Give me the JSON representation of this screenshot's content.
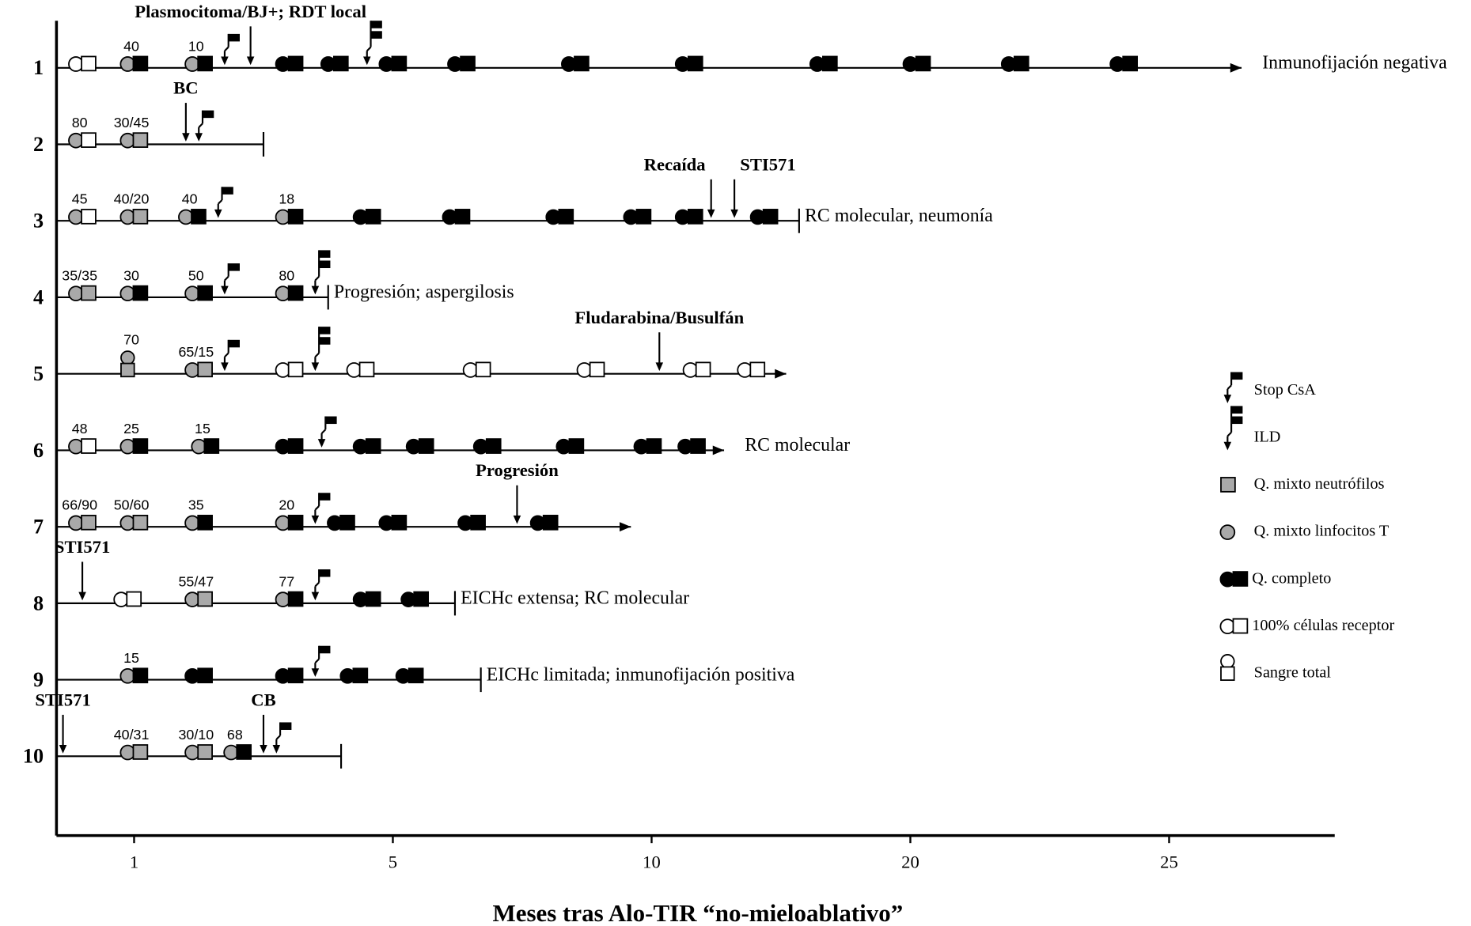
{
  "chart_data": {
    "type": "timeline",
    "x_label": "Meses tras Alo-TIR “no-mieloablativo”",
    "xticks": [
      1,
      5,
      10,
      20,
      25
    ],
    "xlim": [
      -0.2,
      28.2
    ],
    "xscale": "tick-equidistant",
    "rows": [
      {
        "name": "1",
        "events": [
          {
            "kind": "marker",
            "month": 0.1,
            "circle": "white",
            "square": "white"
          },
          {
            "kind": "marker",
            "month": 0.9,
            "circle": "darkgray",
            "square": "black",
            "label": "40"
          },
          {
            "kind": "marker",
            "month": 1.9,
            "circle": "darkgray",
            "square": "black",
            "label": "10"
          },
          {
            "kind": "stop_csa",
            "month": 2.4
          },
          {
            "kind": "arrow",
            "month": 2.8,
            "label": "Plasmocitoma/BJ+; RDT local"
          },
          {
            "kind": "marker",
            "month": 3.3,
            "circle": "black",
            "square": "black"
          },
          {
            "kind": "marker",
            "month": 4.0,
            "circle": "black",
            "square": "black"
          },
          {
            "kind": "ild",
            "month": 4.6
          },
          {
            "kind": "marker",
            "month": 4.9,
            "circle": "black",
            "square": "black"
          },
          {
            "kind": "marker",
            "month": 6.2,
            "circle": "black",
            "square": "black"
          },
          {
            "kind": "marker",
            "month": 8.4,
            "circle": "black",
            "square": "black"
          },
          {
            "kind": "marker",
            "month": 11.2,
            "circle": "black",
            "square": "black"
          },
          {
            "kind": "marker",
            "month": 16.4,
            "circle": "black",
            "square": "black"
          },
          {
            "kind": "marker",
            "month": 20.0,
            "circle": "black",
            "square": "black"
          },
          {
            "kind": "marker",
            "month": 21.9,
            "circle": "black",
            "square": "black"
          },
          {
            "kind": "marker",
            "month": 24.0,
            "circle": "black",
            "square": "black"
          }
        ],
        "end": {
          "month": 26.4,
          "kind": "arrow"
        },
        "end_text": "Inmunofijación negativa"
      },
      {
        "name": "2",
        "events": [
          {
            "kind": "marker",
            "month": 0.1,
            "circle": "darkgray",
            "square": "white",
            "label": "80"
          },
          {
            "kind": "marker",
            "month": 0.9,
            "circle": "darkgray",
            "square": "darkgray",
            "label": "30/45"
          },
          {
            "kind": "arrow",
            "month": 1.8,
            "label": "BC"
          },
          {
            "kind": "stop_csa",
            "month": 2.0
          }
        ],
        "end": {
          "month": 3.0,
          "kind": "bar"
        }
      },
      {
        "name": "3",
        "events": [
          {
            "kind": "marker",
            "month": 0.1,
            "circle": "darkgray",
            "square": "white",
            "label": "45"
          },
          {
            "kind": "marker",
            "month": 0.9,
            "circle": "darkgray",
            "square": "darkgray",
            "label": "40/20"
          },
          {
            "kind": "marker",
            "month": 1.8,
            "circle": "darkgray",
            "square": "black",
            "label": "40"
          },
          {
            "kind": "stop_csa",
            "month": 2.3
          },
          {
            "kind": "marker",
            "month": 3.3,
            "circle": "darkgray",
            "square": "black",
            "label": "18"
          },
          {
            "kind": "marker",
            "month": 4.5,
            "circle": "black",
            "square": "black"
          },
          {
            "kind": "marker",
            "month": 6.1,
            "circle": "black",
            "square": "black"
          },
          {
            "kind": "marker",
            "month": 8.1,
            "circle": "black",
            "square": "black"
          },
          {
            "kind": "marker",
            "month": 9.6,
            "circle": "black",
            "square": "black"
          },
          {
            "kind": "marker",
            "month": 11.2,
            "circle": "black",
            "square": "black"
          },
          {
            "kind": "arrow",
            "month": 12.3,
            "label": "Recaída"
          },
          {
            "kind": "arrow",
            "month": 13.2,
            "label": "STI571"
          },
          {
            "kind": "marker",
            "month": 14.1,
            "circle": "black",
            "square": "black"
          }
        ],
        "end": {
          "month": 15.7,
          "kind": "bar"
        },
        "end_text": "RC molecular, neumonía"
      },
      {
        "name": "4",
        "events": [
          {
            "kind": "marker",
            "month": 0.1,
            "circle": "darkgray",
            "square": "darkgray",
            "label": "35/35"
          },
          {
            "kind": "marker",
            "month": 0.9,
            "circle": "darkgray",
            "square": "black",
            "label": "30"
          },
          {
            "kind": "marker",
            "month": 1.9,
            "circle": "darkgray",
            "square": "black",
            "label": "50"
          },
          {
            "kind": "stop_csa",
            "month": 2.4
          },
          {
            "kind": "marker",
            "month": 3.3,
            "circle": "darkgray",
            "square": "black",
            "label": "80"
          },
          {
            "kind": "ild",
            "month": 3.8
          }
        ],
        "end": {
          "month": 4.0,
          "kind": "bar"
        },
        "end_text": "Progresión; aspergilosis"
      },
      {
        "name": "5",
        "events": [
          {
            "kind": "marker",
            "month": 0.9,
            "circle": "darkgray",
            "square": "darkgray",
            "stacked": true,
            "label": "70"
          },
          {
            "kind": "marker",
            "month": 1.9,
            "circle": "darkgray",
            "square": "darkgray",
            "label": "65/15"
          },
          {
            "kind": "stop_csa",
            "month": 2.4
          },
          {
            "kind": "marker",
            "month": 3.3,
            "circle": "white",
            "square": "white"
          },
          {
            "kind": "ild",
            "month": 3.8
          },
          {
            "kind": "marker",
            "month": 4.4,
            "circle": "white",
            "square": "white"
          },
          {
            "kind": "marker",
            "month": 6.5,
            "circle": "white",
            "square": "white"
          },
          {
            "kind": "marker",
            "month": 8.7,
            "circle": "white",
            "square": "white"
          },
          {
            "kind": "arrow",
            "month": 10.3,
            "label": "Fludarabina/Busulfán"
          },
          {
            "kind": "marker",
            "month": 11.5,
            "circle": "white",
            "square": "white"
          },
          {
            "kind": "marker",
            "month": 13.6,
            "circle": "white",
            "square": "white"
          }
        ],
        "end": {
          "month": 15.2,
          "kind": "arrow"
        }
      },
      {
        "name": "6",
        "events": [
          {
            "kind": "marker",
            "month": 0.1,
            "circle": "darkgray",
            "square": "white",
            "label": "48"
          },
          {
            "kind": "marker",
            "month": 0.9,
            "circle": "darkgray",
            "square": "black",
            "label": "25"
          },
          {
            "kind": "marker",
            "month": 2.0,
            "circle": "darkgray",
            "square": "black",
            "label": "15"
          },
          {
            "kind": "marker",
            "month": 3.3,
            "circle": "black",
            "square": "black"
          },
          {
            "kind": "stop_csa",
            "month": 3.9
          },
          {
            "kind": "marker",
            "month": 4.5,
            "circle": "black",
            "square": "black"
          },
          {
            "kind": "marker",
            "month": 5.4,
            "circle": "black",
            "square": "black"
          },
          {
            "kind": "marker",
            "month": 6.7,
            "circle": "black",
            "square": "black"
          },
          {
            "kind": "marker",
            "month": 8.3,
            "circle": "black",
            "square": "black"
          },
          {
            "kind": "marker",
            "month": 9.8,
            "circle": "black",
            "square": "black"
          },
          {
            "kind": "marker",
            "month": 11.3,
            "circle": "black",
            "square": "black"
          }
        ],
        "end": {
          "month": 12.8,
          "kind": "arrow"
        },
        "end_text": "RC molecular"
      },
      {
        "name": "7",
        "events": [
          {
            "kind": "marker",
            "month": 0.1,
            "circle": "darkgray",
            "square": "darkgray",
            "label": "66/90"
          },
          {
            "kind": "marker",
            "month": 0.9,
            "circle": "darkgray",
            "square": "darkgray",
            "label": "50/60"
          },
          {
            "kind": "marker",
            "month": 1.9,
            "circle": "darkgray",
            "square": "black",
            "label": "35"
          },
          {
            "kind": "marker",
            "month": 3.3,
            "circle": "darkgray",
            "square": "black",
            "label": "20"
          },
          {
            "kind": "stop_csa",
            "month": 3.8
          },
          {
            "kind": "marker",
            "month": 4.1,
            "circle": "black",
            "square": "black"
          },
          {
            "kind": "marker",
            "month": 4.9,
            "circle": "black",
            "square": "black"
          },
          {
            "kind": "marker",
            "month": 6.4,
            "circle": "black",
            "square": "black"
          },
          {
            "kind": "arrow",
            "month": 7.4,
            "label": "Progresión"
          },
          {
            "kind": "marker",
            "month": 7.8,
            "circle": "black",
            "square": "black"
          }
        ],
        "end": {
          "month": 9.6,
          "kind": "arrow"
        }
      },
      {
        "name": "8",
        "events": [
          {
            "kind": "arrow",
            "month": 0.2,
            "label": "STI571"
          },
          {
            "kind": "marker",
            "month": 0.8,
            "circle": "white",
            "square": "white"
          },
          {
            "kind": "marker",
            "month": 1.9,
            "circle": "darkgray",
            "square": "darkgray",
            "label": "55/47"
          },
          {
            "kind": "marker",
            "month": 3.3,
            "circle": "darkgray",
            "square": "black",
            "label": "77"
          },
          {
            "kind": "stop_csa",
            "month": 3.8
          },
          {
            "kind": "marker",
            "month": 4.5,
            "circle": "black",
            "square": "black"
          },
          {
            "kind": "marker",
            "month": 5.3,
            "circle": "black",
            "square": "black"
          }
        ],
        "end": {
          "month": 6.2,
          "kind": "bar"
        },
        "end_text": "EICHc extensa; RC molecular"
      },
      {
        "name": "9",
        "events": [
          {
            "kind": "marker",
            "month": 0.9,
            "circle": "darkgray",
            "square": "black",
            "label": "15"
          },
          {
            "kind": "marker",
            "month": 1.9,
            "circle": "black",
            "square": "black"
          },
          {
            "kind": "marker",
            "month": 3.3,
            "circle": "black",
            "square": "black"
          },
          {
            "kind": "stop_csa",
            "month": 3.8
          },
          {
            "kind": "marker",
            "month": 4.3,
            "circle": "black",
            "square": "black"
          },
          {
            "kind": "marker",
            "month": 5.2,
            "circle": "black",
            "square": "black"
          }
        ],
        "end": {
          "month": 6.7,
          "kind": "bar"
        },
        "end_text": "EICHc limitada; inmunofijación positiva"
      },
      {
        "name": "10",
        "events": [
          {
            "kind": "arrow",
            "month": -0.1,
            "label": "STI571"
          },
          {
            "kind": "marker",
            "month": 0.9,
            "circle": "darkgray",
            "square": "darkgray",
            "label": "40/31"
          },
          {
            "kind": "marker",
            "month": 1.9,
            "circle": "darkgray",
            "square": "darkgray",
            "label": "30/10"
          },
          {
            "kind": "marker",
            "month": 2.5,
            "circle": "darkgray",
            "square": "black",
            "label": "68"
          },
          {
            "kind": "arrow",
            "month": 3.0,
            "label": "CB"
          },
          {
            "kind": "stop_csa",
            "month": 3.2
          }
        ],
        "end": {
          "month": 4.2,
          "kind": "bar"
        }
      }
    ],
    "legend_position": "right",
    "legend": [
      {
        "label": "Stop CsA",
        "symbol": "stop_csa"
      },
      {
        "label": "ILD",
        "symbol": "ild"
      },
      {
        "label": "Q. mixto neutrófilos",
        "square": "darkgray"
      },
      {
        "label": "Q. mixto linfocitos T",
        "circle": "darkgray"
      },
      {
        "label": "Q. completo",
        "circle": "black",
        "square": "black"
      },
      {
        "label": "100% células receptor",
        "circle": "white",
        "square": "white"
      },
      {
        "label": "Sangre total",
        "circle": "white",
        "square": "white",
        "stacked": true
      }
    ]
  }
}
